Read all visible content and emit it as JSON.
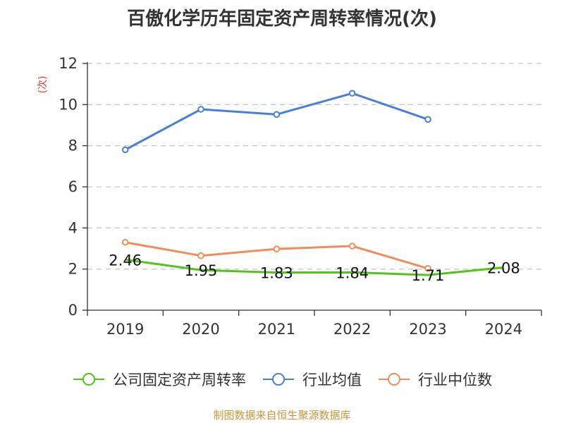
{
  "title": "百傲化学历年固定资产周转率情况(次)",
  "source": "制图数据来自恒生聚源数据库",
  "chart_data": {
    "type": "line",
    "title": "百傲化学历年固定资产周转率情况(次)",
    "ylabel": "(次)",
    "xlabel": "",
    "categories": [
      "2019",
      "2020",
      "2021",
      "2022",
      "2023",
      "2024"
    ],
    "ylim": [
      0,
      12
    ],
    "yticks": [
      0,
      2,
      4,
      6,
      8,
      10,
      12
    ],
    "grid": true,
    "legend_position": "bottom",
    "series": [
      {
        "name": "公司固定资产周转率",
        "color": "#52c41a",
        "values": [
          2.46,
          1.95,
          1.83,
          1.84,
          1.71,
          2.08
        ],
        "labels": [
          "2.46",
          "1.95",
          "1.83",
          "1.84",
          "1.71",
          "2.08"
        ],
        "show_markers": false,
        "show_labels": true
      },
      {
        "name": "行业均值",
        "color": "#4a7fd8",
        "values": [
          7.8,
          9.77,
          9.52,
          10.55,
          9.28,
          null
        ],
        "show_markers": true,
        "show_labels": false
      },
      {
        "name": "行业中位数",
        "color": "#f28c5a",
        "values": [
          3.3,
          2.65,
          2.98,
          3.12,
          2.03,
          null
        ],
        "show_markers": true,
        "show_labels": false
      }
    ]
  }
}
